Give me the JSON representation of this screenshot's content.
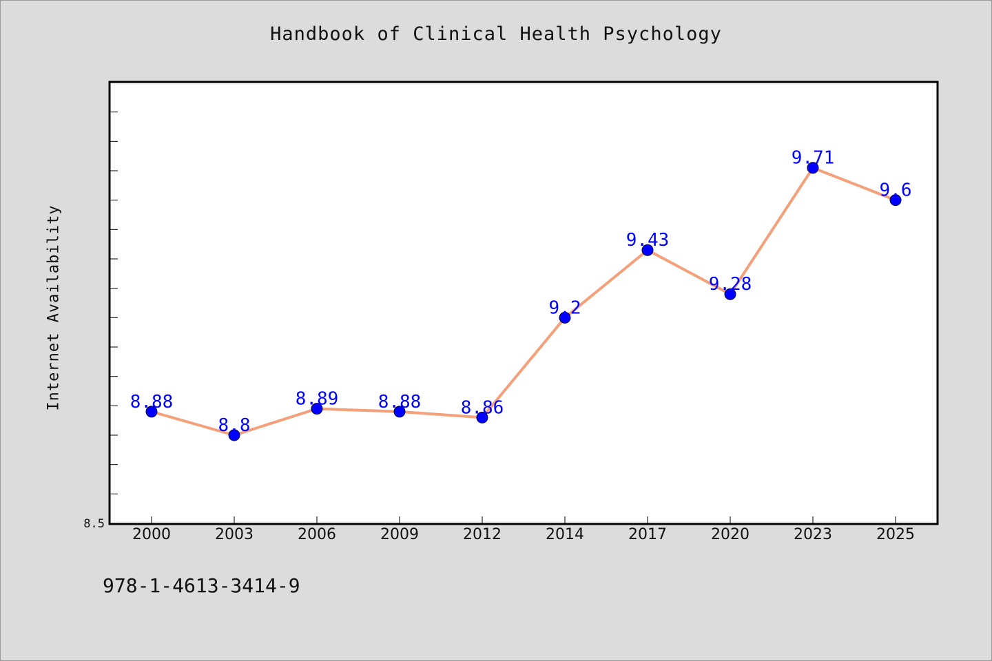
{
  "chart_data": {
    "type": "line",
    "title": "Handbook of Clinical Health Psychology",
    "xlabel": "",
    "ylabel": "Internet Availability",
    "categories": [
      "2000",
      "2003",
      "2006",
      "2009",
      "2012",
      "2014",
      "2017",
      "2020",
      "2023",
      "2025"
    ],
    "series": [
      {
        "values": [
          8.88,
          8.8,
          8.89,
          8.88,
          8.86,
          9.2,
          9.43,
          9.28,
          9.71,
          9.6
        ]
      }
    ],
    "data_labels": [
      "8.88",
      "8.8",
      "8.89",
      "8.88",
      "8.86",
      "9.2",
      "9.43",
      "9.28",
      "9.71",
      "9.6"
    ],
    "ylim": [
      8.5,
      10.0
    ],
    "ytick_labels": [
      "8.5"
    ],
    "grid": false,
    "colors": {
      "line": "#f4a07a",
      "marker": "#0000ff",
      "label": "#0000ff",
      "background": "#dcdcdc",
      "plot_background": "#ffffff"
    }
  },
  "footer": {
    "isbn": "978-1-4613-3414-9"
  }
}
